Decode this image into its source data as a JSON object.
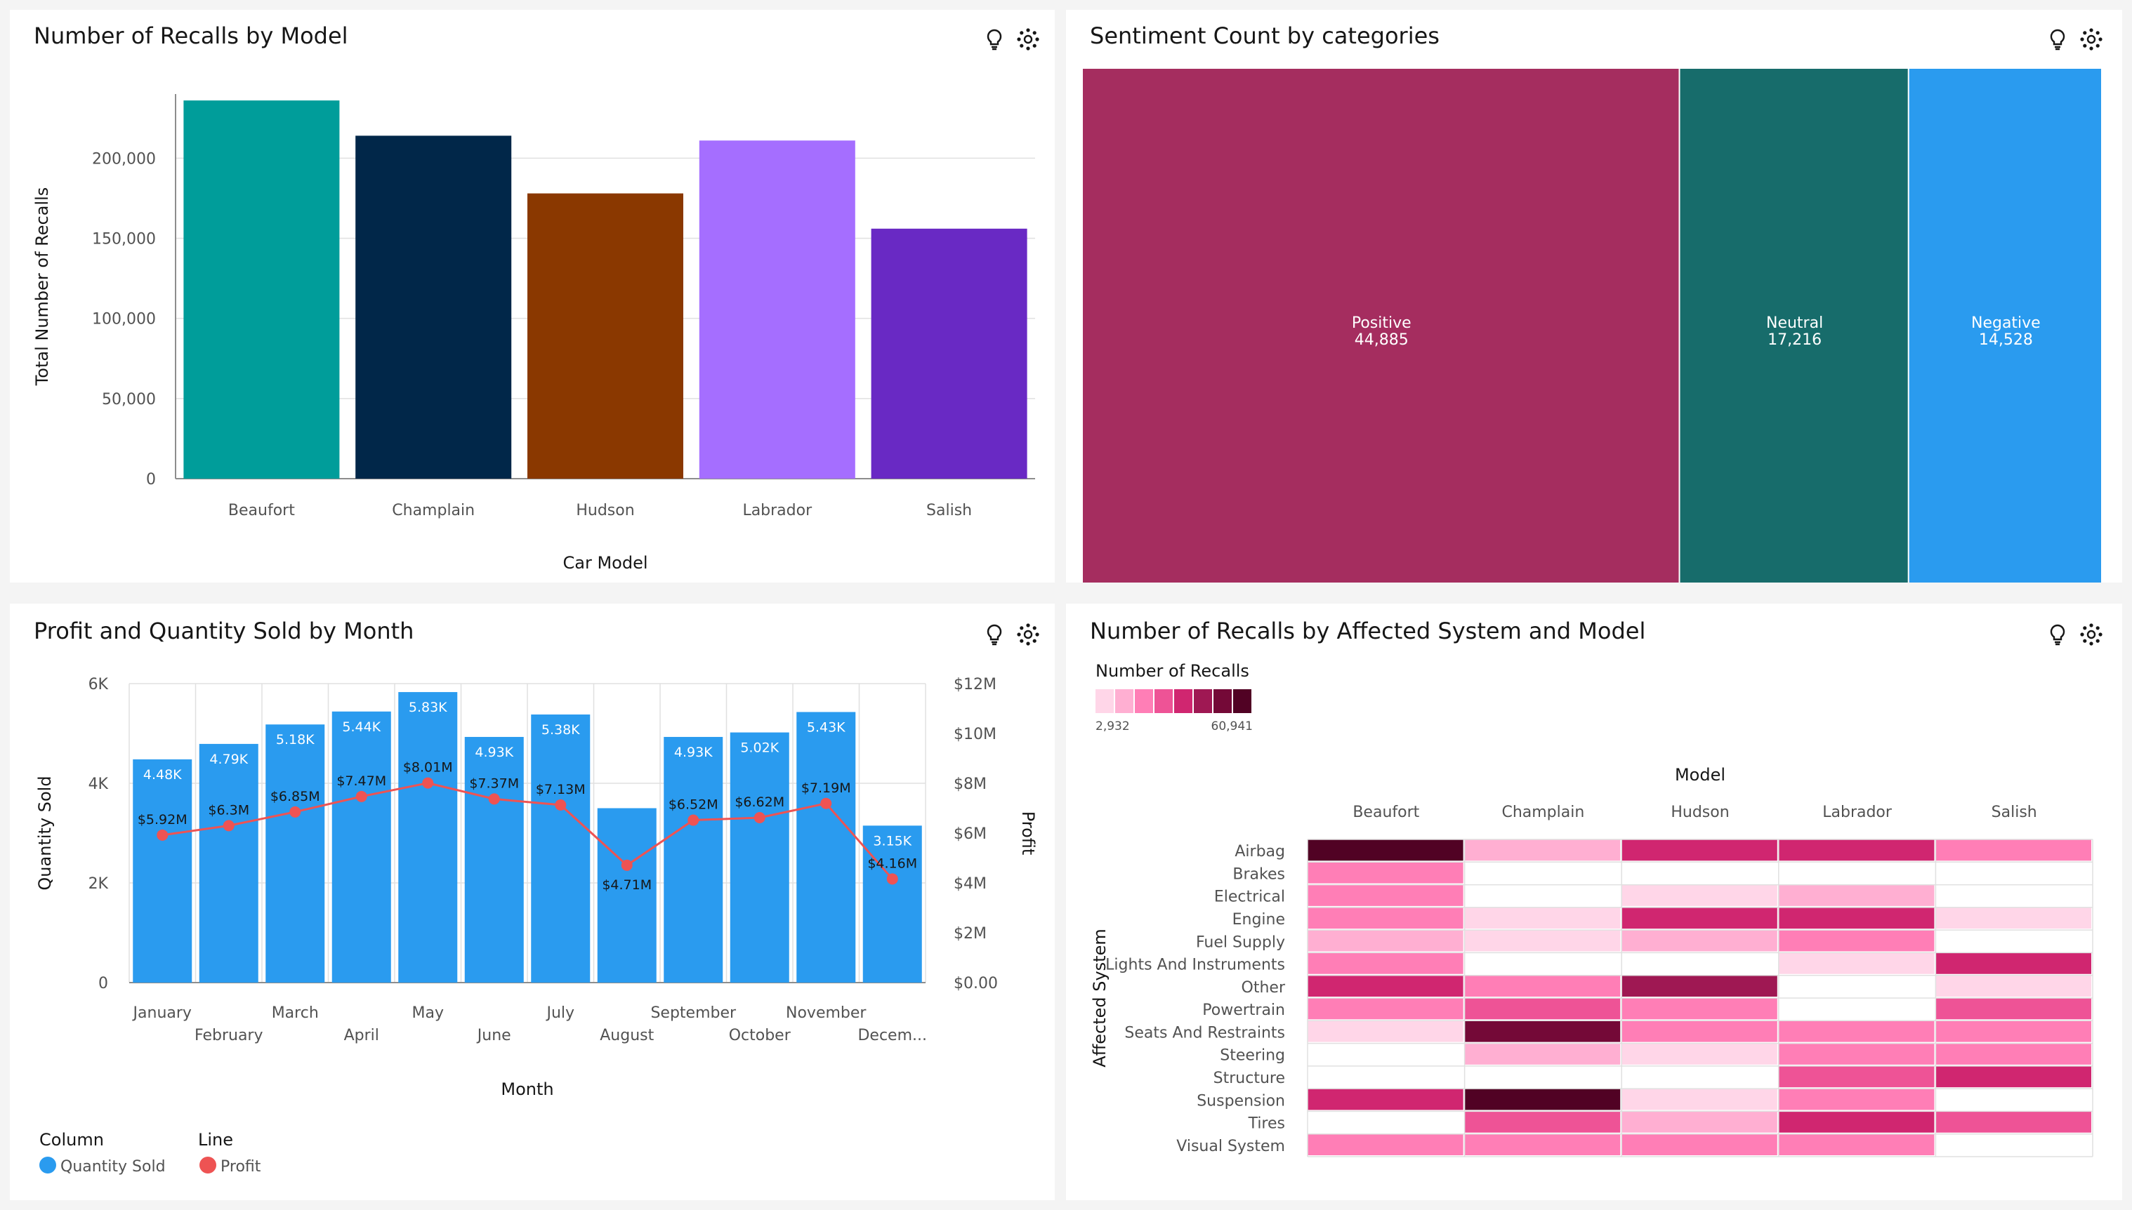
{
  "panels": {
    "recalls_by_model": {
      "title": "Number of Recalls by Model"
    },
    "sentiment": {
      "title": "Sentiment Count by categories"
    },
    "profit_qty": {
      "title": "Profit and Quantity Sold by Month"
    },
    "heatmap": {
      "title": "Number of Recalls by Affected System and Model"
    }
  },
  "icons": [
    "lightbulb-icon",
    "settings-icon"
  ],
  "chart_data": [
    {
      "type": "bar",
      "title": "Number of Recalls by Model",
      "xlabel": "Car Model",
      "ylabel": "Total Number of Recalls",
      "ylim": [
        0,
        240000
      ],
      "yticks": [
        "0",
        "50,000",
        "100,000",
        "150,000",
        "200,000"
      ],
      "categories": [
        "Beaufort",
        "Champlain",
        "Hudson",
        "Labrador",
        "Salish"
      ],
      "values": [
        236000,
        214000,
        178000,
        211000,
        156000
      ],
      "colors": [
        "#009d9a",
        "#012749",
        "#8a3800",
        "#a56eff",
        "#6929c4"
      ],
      "grid": true
    },
    {
      "type": "treemap",
      "title": "Sentiment Count by categories",
      "categories": [
        "Positive",
        "Neutral",
        "Negative"
      ],
      "values": [
        44885,
        17216,
        14528
      ],
      "labels": [
        "44,885",
        "17,216",
        "14,528"
      ],
      "colors": [
        "#a52d5f",
        "#176c6b",
        "#2a9bef"
      ]
    },
    {
      "type": "bar+line",
      "title": "Profit and Quantity Sold by Month",
      "xlabel": "Month",
      "ylabel": "Quantity Sold",
      "y2label": "Profit",
      "ylim": [
        0,
        6000
      ],
      "y2lim": [
        0,
        12000000
      ],
      "yticks": [
        "0",
        "2K",
        "4K",
        "6K"
      ],
      "y2ticks": [
        "$0.00",
        "$2M",
        "$4M",
        "$6M",
        "$8M",
        "$10M",
        "$12M"
      ],
      "categories": [
        "January",
        "February",
        "March",
        "April",
        "May",
        "June",
        "July",
        "August",
        "September",
        "October",
        "November",
        "Decem..."
      ],
      "series": [
        {
          "name": "Quantity Sold",
          "type": "bar",
          "color": "#2a9bef",
          "values": [
            4480,
            4790,
            5180,
            5440,
            5830,
            4930,
            5380,
            3500,
            4930,
            5020,
            5430,
            3150
          ],
          "labels": [
            "4.48K",
            "4.79K",
            "5.18K",
            "5.44K",
            "5.83K",
            "4.93K",
            "5.38K",
            "",
            "4.93K",
            "5.02K",
            "5.43K",
            "3.15K"
          ]
        },
        {
          "name": "Profit",
          "type": "line",
          "color": "#ee5353",
          "values": [
            5920000,
            6300000,
            6850000,
            7470000,
            8010000,
            7370000,
            7130000,
            4710000,
            6520000,
            6620000,
            7190000,
            4160000
          ],
          "labels": [
            "$5.92M",
            "$6.3M",
            "$6.85M",
            "$7.47M",
            "$8.01M",
            "$7.37M",
            "$7.13M",
            "$4.71M",
            "$6.52M",
            "$6.62M",
            "$7.19M",
            "$4.16M"
          ]
        }
      ],
      "legend": {
        "column_title": "Column",
        "column_item": "Quantity Sold",
        "line_title": "Line",
        "line_item": "Profit"
      }
    },
    {
      "type": "heatmap",
      "title": "Number of Recalls by Affected System and Model",
      "legend_title": "Number of Recalls",
      "legend_min": "2,932",
      "legend_max": "60,941",
      "xlabel": "Model",
      "ylabel": "Affected System",
      "columns": [
        "Beaufort",
        "Champlain",
        "Hudson",
        "Labrador",
        "Salish"
      ],
      "rows": [
        "Airbag",
        "Brakes",
        "Electrical",
        "Engine",
        "Fuel Supply",
        "Lights And Instruments",
        "Other",
        "Powertrain",
        "Seats And Restraints",
        "Steering",
        "Structure",
        "Suspension",
        "Tires",
        "Visual System"
      ],
      "values": [
        [
          56000,
          12000,
          34000,
          34000,
          24000
        ],
        [
          24000,
          null,
          null,
          null,
          null
        ],
        [
          18000,
          null,
          6000,
          15000,
          null
        ],
        [
          24000,
          10000,
          32000,
          34000,
          6000
        ],
        [
          12000,
          6000,
          12000,
          24000,
          null
        ],
        [
          24000,
          null,
          null,
          6000,
          34000
        ],
        [
          32000,
          18000,
          44000,
          null,
          6000
        ],
        [
          18000,
          28000,
          18000,
          null,
          26000
        ],
        [
          6000,
          48000,
          24000,
          18000,
          18000
        ],
        [
          null,
          14000,
          6000,
          18000,
          18000
        ],
        [
          null,
          null,
          null,
          26000,
          34000
        ],
        [
          36000,
          60941,
          6000,
          18000,
          null
        ],
        [
          null,
          26000,
          12000,
          34000,
          26000
        ],
        [
          24000,
          24000,
          24000,
          24000,
          null
        ]
      ],
      "color_scale": [
        "#ffd6e8",
        "#ffafd2",
        "#ff7eb6",
        "#ee5396",
        "#d02670",
        "#9f1853",
        "#740937",
        "#510224"
      ]
    }
  ]
}
